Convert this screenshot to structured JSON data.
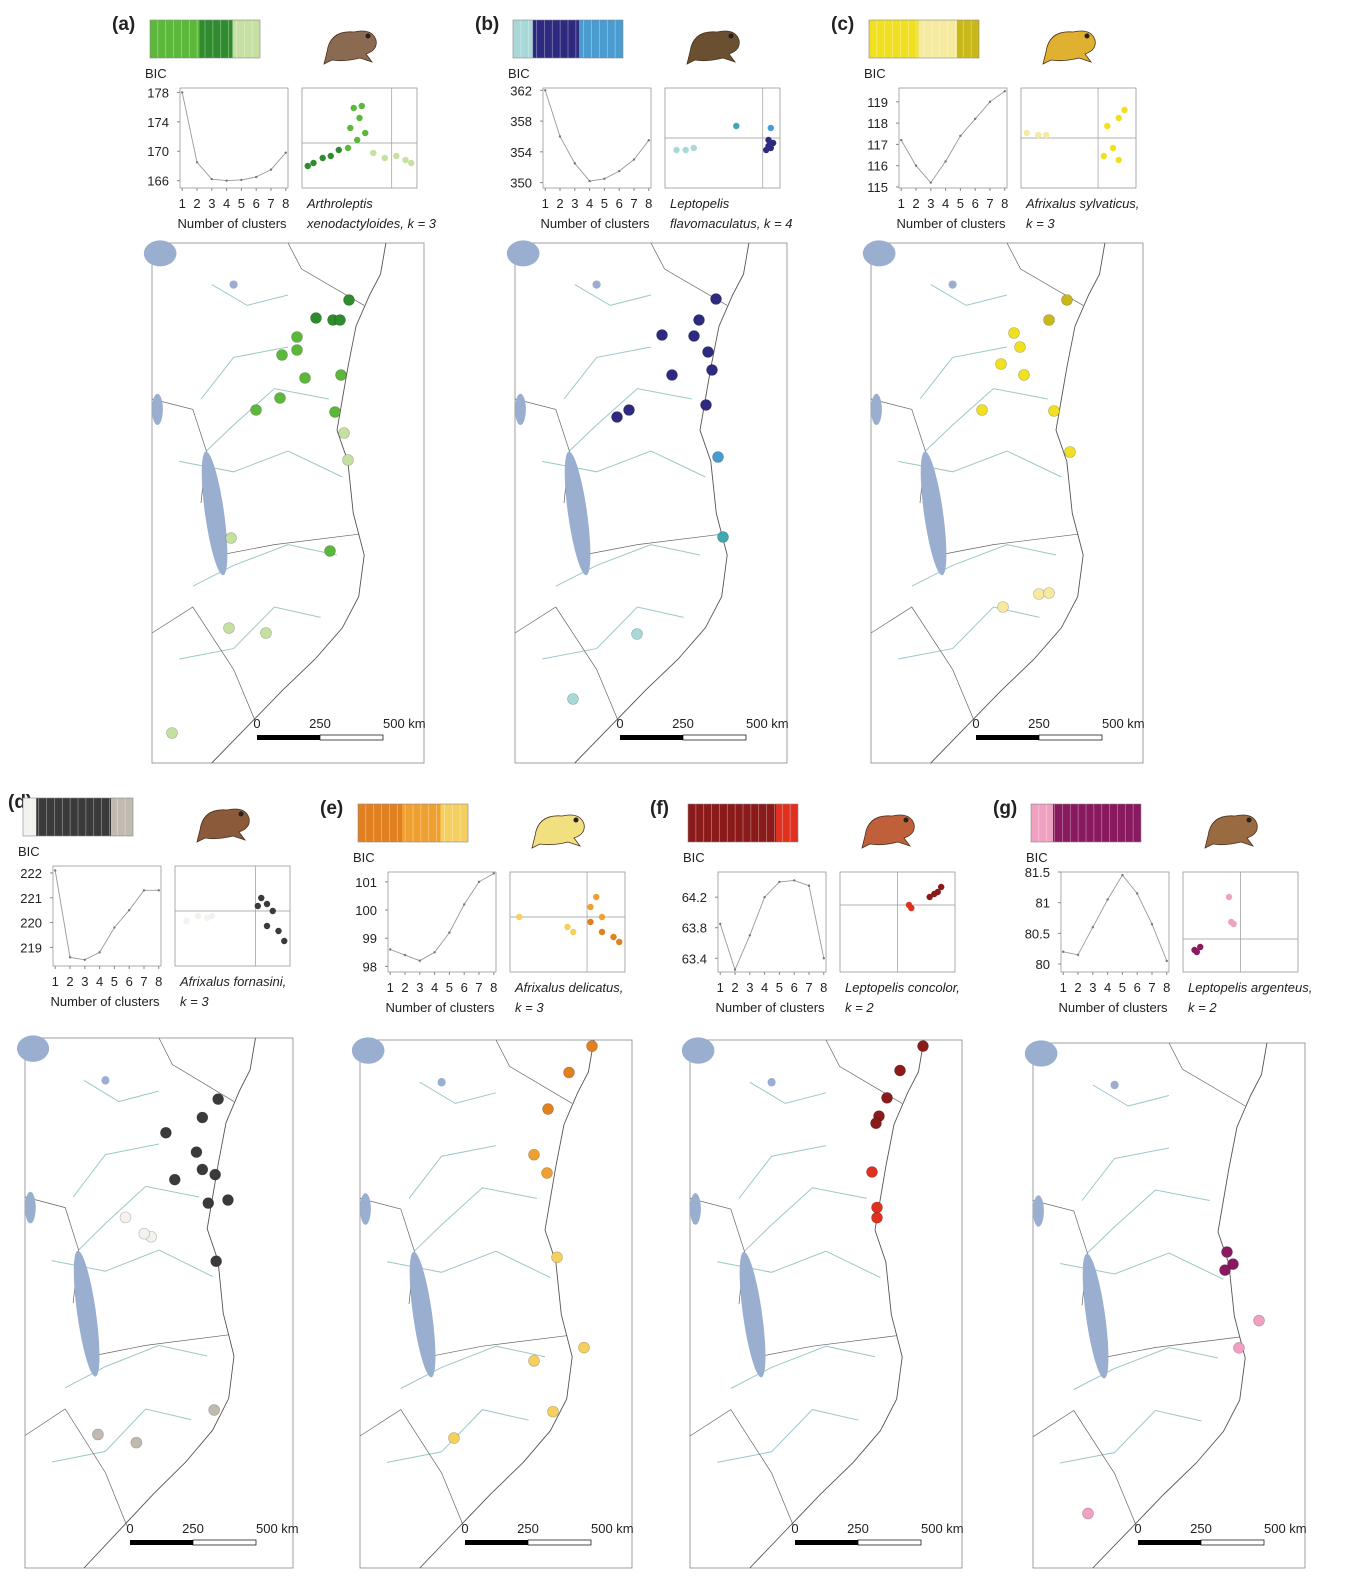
{
  "chart_data": [
    {
      "type": "line",
      "panel": "(a)",
      "ylabel": "BIC",
      "xlabel": "Number of clusters",
      "x": [
        1,
        2,
        3,
        4,
        5,
        6,
        7,
        8
      ],
      "xlim": [
        0.85,
        8.15
      ],
      "xticks": [
        1,
        2,
        3,
        4,
        5,
        6,
        7,
        8
      ],
      "values": [
        178,
        168.5,
        166.2,
        166,
        166.1,
        166.5,
        167.5,
        169.8
      ],
      "ylim": [
        165,
        178.6
      ],
      "yticks": [
        166,
        170,
        174,
        178
      ],
      "color": "#999999",
      "caption": [
        "Arthroleptis",
        "xenodactyloides, k = 3"
      ],
      "scale_labels": [
        "0",
        "250",
        "500 km"
      ],
      "cluster_colors": [
        "#2e8b2e",
        "#5cb83a",
        "#c5e0a0"
      ]
    },
    {
      "type": "line",
      "panel": "(b)",
      "ylabel": "BIC",
      "xlabel": "Number of clusters",
      "x": [
        1,
        2,
        3,
        4,
        5,
        6,
        7,
        8
      ],
      "xlim": [
        0.85,
        8.15
      ],
      "xticks": [
        1,
        2,
        3,
        4,
        5,
        6,
        7,
        8
      ],
      "values": [
        362,
        356,
        352.5,
        350.2,
        350.5,
        351.5,
        353,
        355.5
      ],
      "ylim": [
        349.3,
        362.3
      ],
      "yticks": [
        350,
        354,
        358,
        362
      ],
      "color": "#999999",
      "caption": [
        "Leptopelis",
        "flavomaculatus, k = 4"
      ],
      "scale_labels": [
        "0",
        "250",
        "500 km"
      ],
      "cluster_colors": [
        "#2e2a80",
        "#4a9bd0",
        "#3fa8b0",
        "#a8d8d8"
      ]
    },
    {
      "type": "line",
      "panel": "(c)",
      "ylabel": "BIC",
      "xlabel": "Number of clusters",
      "x": [
        1,
        2,
        3,
        4,
        5,
        6,
        7,
        8
      ],
      "xlim": [
        0.85,
        8.15
      ],
      "xticks": [
        1,
        2,
        3,
        4,
        5,
        6,
        7,
        8
      ],
      "values": [
        117.2,
        116,
        115.2,
        116.2,
        117.4,
        118.2,
        119,
        119.5
      ],
      "ylim": [
        114.95,
        119.65
      ],
      "yticks": [
        115,
        116,
        117,
        118,
        119
      ],
      "color": "#999999",
      "caption": [
        "Afrixalus sylvaticus,",
        "k = 3"
      ],
      "scale_labels": [
        "0",
        "250",
        "500 km"
      ],
      "cluster_colors": [
        "#c9b81a",
        "#f0e020",
        "#f5eaa0"
      ]
    },
    {
      "type": "line",
      "panel": "(d)",
      "ylabel": "BIC",
      "xlabel": "Number of clusters",
      "x": [
        1,
        2,
        3,
        4,
        5,
        6,
        7,
        8
      ],
      "xlim": [
        0.85,
        8.15
      ],
      "xticks": [
        1,
        2,
        3,
        4,
        5,
        6,
        7,
        8
      ],
      "values": [
        222.1,
        218.6,
        218.5,
        218.8,
        219.8,
        220.5,
        221.3,
        221.3
      ],
      "ylim": [
        218.25,
        222.28
      ],
      "yticks": [
        219,
        220,
        221,
        222
      ],
      "color": "#999999",
      "caption": [
        "Afrixalus fornasini,",
        "k = 3"
      ],
      "scale_labels": [
        "0",
        "250",
        "500 km"
      ],
      "cluster_colors": [
        "#3a3a3a",
        "#f4f2ec",
        "#c0bab0"
      ]
    },
    {
      "type": "line",
      "panel": "(e)",
      "ylabel": "BIC",
      "xlabel": "Number of clusters",
      "x": [
        1,
        2,
        3,
        4,
        5,
        6,
        7,
        8
      ],
      "xlim": [
        0.85,
        8.15
      ],
      "xticks": [
        1,
        2,
        3,
        4,
        5,
        6,
        7,
        8
      ],
      "values": [
        98.6,
        98.4,
        98.2,
        98.5,
        99.2,
        100.2,
        101,
        101.3
      ],
      "ylim": [
        97.8,
        101.35
      ],
      "yticks": [
        98,
        99,
        100,
        101
      ],
      "color": "#999999",
      "caption": [
        "Afrixalus delicatus,",
        "k = 3"
      ],
      "scale_labels": [
        "0",
        "250",
        "500 km"
      ],
      "cluster_colors": [
        "#e08020",
        "#f0a030",
        "#f5d060"
      ]
    },
    {
      "type": "line",
      "panel": "(f)",
      "ylabel": "BIC",
      "xlabel": "Number of clusters",
      "x": [
        1,
        2,
        3,
        4,
        5,
        6,
        7,
        8
      ],
      "xlim": [
        0.85,
        8.15
      ],
      "xticks": [
        1,
        2,
        3,
        4,
        5,
        6,
        7,
        8
      ],
      "values": [
        63.85,
        63.25,
        63.7,
        64.2,
        64.4,
        64.42,
        64.35,
        63.4
      ],
      "ylim": [
        63.22,
        64.53
      ],
      "yticks": [
        63.4,
        63.8,
        64.2
      ],
      "color": "#999999",
      "caption": [
        "Leptopelis concolor,",
        "k = 2"
      ],
      "scale_labels": [
        "0",
        "250",
        "500 km"
      ],
      "cluster_colors": [
        "#8b1a1a",
        "#e03020"
      ]
    },
    {
      "type": "line",
      "panel": "(g)",
      "ylabel": "BIC",
      "xlabel": "Number of clusters",
      "x": [
        1,
        2,
        3,
        4,
        5,
        6,
        7,
        8
      ],
      "xlim": [
        0.85,
        8.15
      ],
      "xticks": [
        1,
        2,
        3,
        4,
        5,
        6,
        7,
        8
      ],
      "values": [
        80.2,
        80.15,
        80.6,
        81.05,
        81.45,
        81.15,
        80.65,
        80.05
      ],
      "ylim": [
        79.87,
        81.5
      ],
      "yticks": [
        80,
        80.5,
        81,
        81.5
      ],
      "color": "#999999",
      "caption": [
        "Leptopelis  argenteus,",
        "k = 2"
      ],
      "scale_labels": [
        "0",
        "250",
        "500 km"
      ],
      "cluster_colors": [
        "#8a1a60",
        "#f0a0c0"
      ]
    }
  ]
}
